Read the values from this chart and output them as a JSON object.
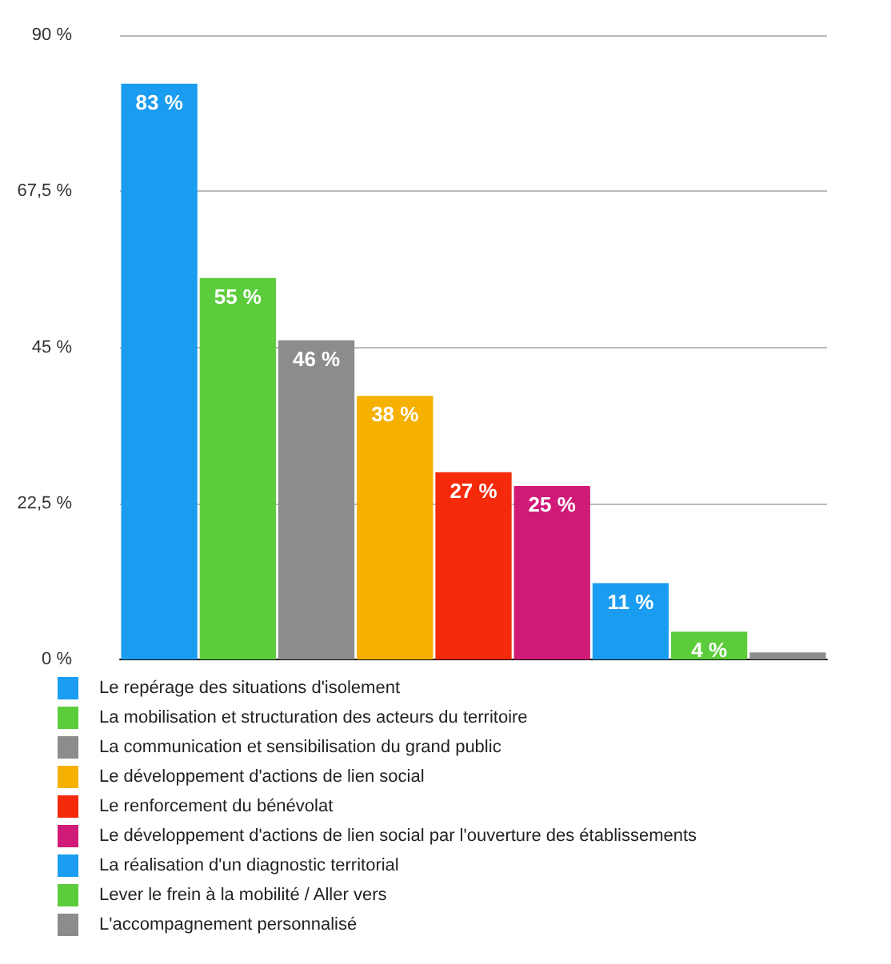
{
  "chart_data": {
    "type": "bar",
    "categories": [
      null,
      null,
      null,
      null,
      null,
      null,
      null,
      null,
      null
    ],
    "series": [
      {
        "name": "Le repérage des situations d'isolement",
        "color": "#1a9cf0",
        "values": [
          83,
          null,
          null,
          null,
          null,
          null,
          null,
          null,
          null
        ],
        "value_labels": [
          "83 %",
          null,
          null,
          null,
          null,
          null,
          null,
          null,
          null
        ]
      },
      {
        "name": "La mobilisation et structuration des acteurs du territoire",
        "color": "#5ccc3c",
        "values": [
          null,
          55,
          null,
          null,
          null,
          null,
          null,
          null,
          null
        ],
        "value_labels": [
          null,
          "55 %",
          null,
          null,
          null,
          null,
          null,
          null,
          null
        ]
      },
      {
        "name": "La communication et sensibilisation du grand public",
        "color": "#8c8c8c",
        "values": [
          null,
          null,
          46,
          null,
          null,
          null,
          null,
          null,
          null
        ],
        "value_labels": [
          null,
          null,
          "46 %",
          null,
          null,
          null,
          null,
          null,
          null
        ]
      },
      {
        "name": "Le développement d'actions de lien social",
        "color": "#f5b000",
        "values": [
          null,
          null,
          null,
          38,
          null,
          null,
          null,
          null,
          null
        ],
        "value_labels": [
          null,
          null,
          null,
          "38 %",
          null,
          null,
          null,
          null,
          null
        ]
      },
      {
        "name": "Le renforcement du bénévolat",
        "color": "#f52a0a",
        "values": [
          null,
          null,
          null,
          null,
          27,
          null,
          null,
          null,
          null
        ],
        "value_labels": [
          null,
          null,
          null,
          null,
          "27 %",
          null,
          null,
          null,
          null
        ]
      },
      {
        "name": "Le développement d'actions de lien social par l'ouverture des établissements",
        "color": "#d01a78",
        "values": [
          null,
          null,
          null,
          null,
          null,
          25,
          null,
          null,
          null
        ],
        "value_labels": [
          null,
          null,
          null,
          null,
          null,
          "25 %",
          null,
          null,
          null
        ]
      },
      {
        "name": "La réalisation d'un diagnostic territorial",
        "color": "#1a9cf0",
        "values": [
          null,
          null,
          null,
          null,
          null,
          null,
          11,
          null,
          null
        ],
        "value_labels": [
          null,
          null,
          null,
          null,
          null,
          null,
          "11 %",
          null,
          null
        ]
      },
      {
        "name": "Lever le frein à la mobilité / Aller vers",
        "color": "#5ccc3c",
        "values": [
          null,
          null,
          null,
          null,
          null,
          null,
          null,
          4,
          null
        ],
        "value_labels": [
          null,
          null,
          null,
          null,
          null,
          null,
          null,
          "4 %",
          null
        ]
      },
      {
        "name": "L'accompagnement personnalisé",
        "color": "#8c8c8c",
        "values": [
          null,
          null,
          null,
          null,
          null,
          null,
          null,
          null,
          1
        ],
        "value_labels": [
          null,
          null,
          null,
          null,
          null,
          null,
          null,
          null,
          null
        ]
      }
    ],
    "ylim": [
      0,
      90
    ],
    "yticks": [
      {
        "value": 0,
        "label": "0 %"
      },
      {
        "value": 22.5,
        "label": "22,5 %"
      },
      {
        "value": 45,
        "label": "45 %"
      },
      {
        "value": 67.5,
        "label": "67,5 %"
      },
      {
        "value": 90,
        "label": "90 %"
      }
    ],
    "grid": "y",
    "legend": "bottom",
    "tick_labels": "y"
  }
}
